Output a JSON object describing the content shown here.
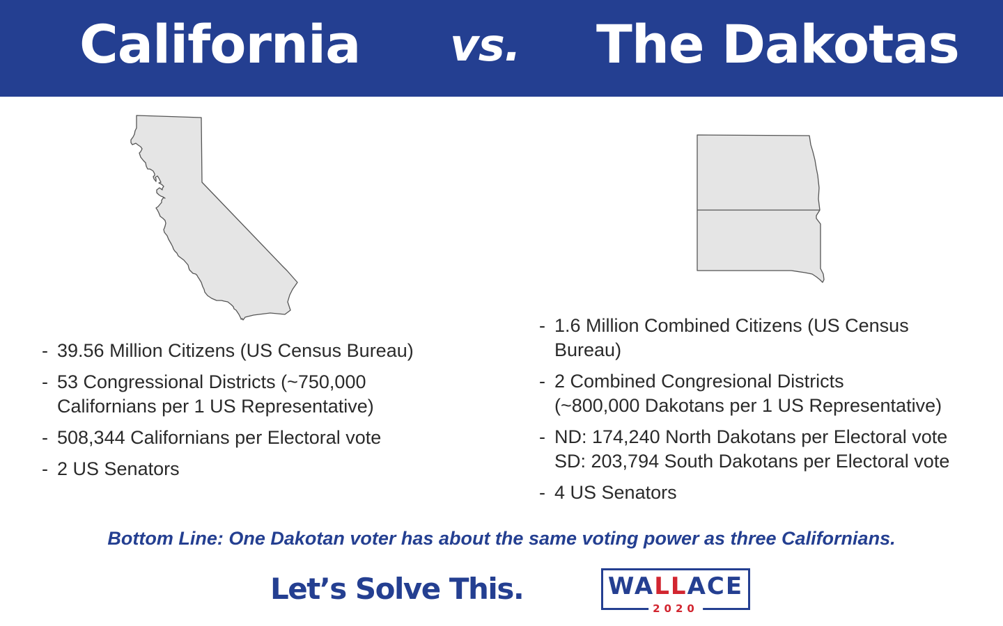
{
  "header": {
    "left_title": "California",
    "vs": "vs.",
    "right_title": "The Dakotas",
    "background": "#243f91"
  },
  "maps": {
    "california": "california-outline-icon",
    "dakotas": "dakotas-outline-icon",
    "fill": "#e5e5e5"
  },
  "california": {
    "facts": [
      {
        "dash": "-",
        "lines": [
          "39.56 Million Citizens (US Census Bureau)"
        ]
      },
      {
        "dash": "-",
        "lines": [
          "53 Congressional Districts (~750,000",
          "Californians per 1 US Representative)"
        ]
      },
      {
        "dash": "-",
        "lines": [
          "508,344 Californians per Electoral vote"
        ]
      },
      {
        "dash": "-",
        "lines": [
          "2 US Senators"
        ]
      }
    ]
  },
  "dakotas": {
    "facts": [
      {
        "dash": "-",
        "lines": [
          "1.6 Million Combined Citizens (US Census",
          "Bureau)"
        ]
      },
      {
        "dash": "-",
        "lines": [
          "2 Combined Congresional Districts",
          "(~800,000 Dakotans per 1 US Representative)"
        ]
      },
      {
        "dash": "-",
        "lines": [
          "ND: 174,240 North Dakotans per Electoral vote",
          "SD: 203,794 South Dakotans per Electoral vote"
        ]
      },
      {
        "dash": "-",
        "lines": [
          "4 US Senators"
        ]
      }
    ]
  },
  "bottom_line": "Bottom Line: One Dakotan voter has about the same voting power as three Californians.",
  "tagline": "Let’s Solve This.",
  "logo": {
    "name_parts": [
      "WA",
      "LL",
      "ACE"
    ],
    "year": "2020",
    "blue": "#243f91",
    "red": "#d22630"
  }
}
